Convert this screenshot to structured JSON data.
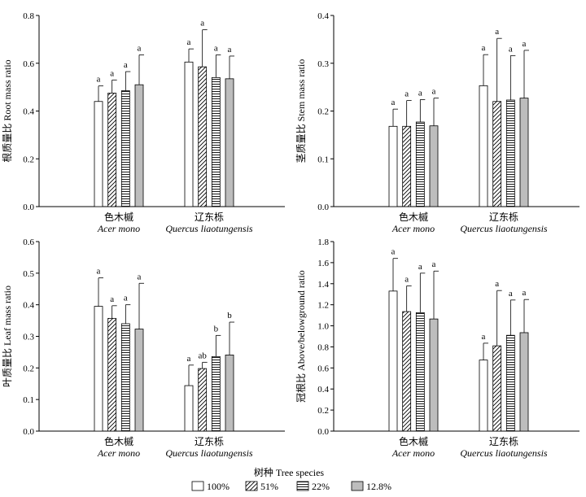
{
  "chart_data": [
    {
      "type": "bar",
      "id": "root",
      "ylabel": "根质量比 Root mass ratio",
      "ylim": [
        0,
        0.8
      ],
      "yticks": [
        "0.0",
        "0.2",
        "0.4",
        "0.6",
        "0.8"
      ],
      "categories": [
        {
          "cn": "色木槭",
          "en": "Acer mono"
        },
        {
          "cn": "辽东栎",
          "en": "Quercus liaotungensis"
        }
      ],
      "values": [
        [
          0.44,
          0.475,
          0.485,
          0.51
        ],
        [
          0.605,
          0.585,
          0.54,
          0.535
        ]
      ],
      "errors": [
        [
          0.065,
          0.055,
          0.08,
          0.125
        ],
        [
          0.055,
          0.155,
          0.095,
          0.095
        ]
      ],
      "letters": [
        [
          "a",
          "a",
          "a",
          "a"
        ],
        [
          "a",
          "a",
          "a",
          "a"
        ]
      ]
    },
    {
      "type": "bar",
      "id": "stem",
      "ylabel": "茎质量比 Stem mass ratio",
      "ylim": [
        0,
        0.4
      ],
      "yticks": [
        "0.0",
        "0.1",
        "0.2",
        "0.3",
        "0.4"
      ],
      "categories": [
        {
          "cn": "色木槭",
          "en": "Acer mono"
        },
        {
          "cn": "辽东栎",
          "en": "Quercus liaotungensis"
        }
      ],
      "values": [
        [
          0.168,
          0.168,
          0.177,
          0.169
        ],
        [
          0.253,
          0.22,
          0.223,
          0.227
        ]
      ],
      "errors": [
        [
          0.036,
          0.054,
          0.047,
          0.058
        ],
        [
          0.065,
          0.132,
          0.093,
          0.1
        ]
      ],
      "letters": [
        [
          "a",
          "a",
          "a",
          "a"
        ],
        [
          "a",
          "a",
          "a",
          "a"
        ]
      ]
    },
    {
      "type": "bar",
      "id": "leaf",
      "ylabel": "叶质量比 Leaf mass ratio",
      "ylim": [
        0,
        0.6
      ],
      "yticks": [
        "0.0",
        "0.1",
        "0.2",
        "0.3",
        "0.4",
        "0.5",
        "0.6"
      ],
      "categories": [
        {
          "cn": "色木槭",
          "en": "Acer mono"
        },
        {
          "cn": "辽东栎",
          "en": "Quercus liaotungensis"
        }
      ],
      "values": [
        [
          0.395,
          0.357,
          0.34,
          0.323
        ],
        [
          0.144,
          0.198,
          0.236,
          0.241
        ]
      ],
      "errors": [
        [
          0.09,
          0.04,
          0.06,
          0.145
        ],
        [
          0.065,
          0.02,
          0.067,
          0.104
        ]
      ],
      "letters": [
        [
          "a",
          "a",
          "a",
          "a"
        ],
        [
          "a",
          "ab",
          "b",
          "b"
        ]
      ]
    },
    {
      "type": "bar",
      "id": "above",
      "ylabel": "冠根比 Above/belowground ratio",
      "ylim": [
        0,
        1.8
      ],
      "yticks": [
        "0.0",
        "0.2",
        "0.4",
        "0.6",
        "0.8",
        "1.0",
        "1.2",
        "1.4",
        "1.6",
        "1.8"
      ],
      "categories": [
        {
          "cn": "色木槭",
          "en": "Acer mono"
        },
        {
          "cn": "辽东栎",
          "en": "Quercus liaotungensis"
        }
      ],
      "values": [
        [
          1.33,
          1.135,
          1.125,
          1.065
        ],
        [
          0.675,
          0.81,
          0.91,
          0.935
        ]
      ],
      "errors": [
        [
          0.31,
          0.245,
          0.375,
          0.455
        ],
        [
          0.16,
          0.525,
          0.335,
          0.315
        ]
      ],
      "letters": [
        [
          "a",
          "a",
          "a",
          "a"
        ],
        [
          "a",
          "a",
          "a",
          "a"
        ]
      ]
    }
  ],
  "xtitle": "树种 Tree species",
  "legend": [
    {
      "label": "100%",
      "pattern": "empty"
    },
    {
      "label": "51%",
      "pattern": "diagonal"
    },
    {
      "label": "22%",
      "pattern": "horizontal"
    },
    {
      "label": "12.8%",
      "pattern": "gray"
    }
  ],
  "colors": {
    "gray_fill": "#bdbdbd",
    "line": "#000000",
    "background": "#ffffff"
  }
}
